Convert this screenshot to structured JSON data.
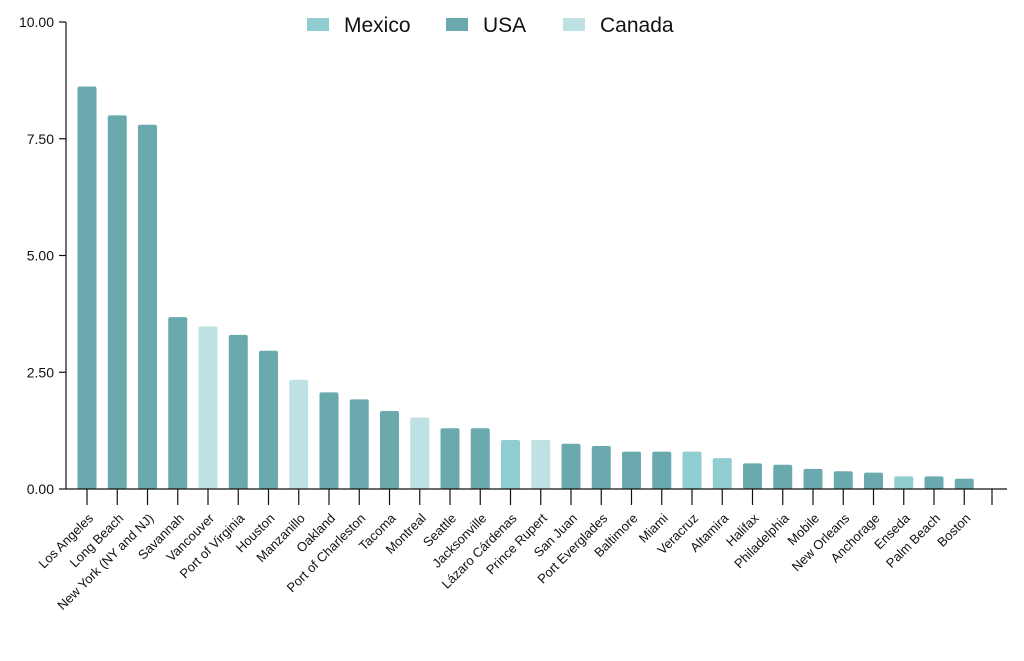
{
  "chart_data": {
    "type": "bar",
    "title": "",
    "xlabel": "",
    "ylabel": "",
    "ylim": [
      0,
      10
    ],
    "yticks": [
      "0.00",
      "2.50",
      "5.00",
      "7.50",
      "10.00"
    ],
    "grid": false,
    "legend_position": "top-center",
    "legend": [
      {
        "name": "Mexico",
        "color": "#90cdd0"
      },
      {
        "name": "USA",
        "color": "#6aaaae"
      },
      {
        "name": "Canada",
        "color": "#bee1e3"
      }
    ],
    "categories": [
      "Los Angeles",
      "Long Beach",
      "New York (NY and NJ)",
      "Savannah",
      "Vancouver",
      "Port of Virginia",
      "Houston",
      "Manzanillo",
      "Oakland",
      "Port of Charleston",
      "Tacoma",
      "Montreal",
      "Seattle",
      "Jacksonville",
      "Lázaro Cárdenas",
      "Prince Rupert",
      "San Juan",
      "Port Everglades",
      "Baltimore",
      "Miami",
      "Veracruz",
      "Altamira",
      "Halifax",
      "Philadelphia",
      "Mobile",
      "New Orleans",
      "Anchorage",
      "Enseda",
      "Palm Beach",
      "Boston"
    ],
    "values": [
      8.62,
      8.0,
      7.8,
      3.68,
      3.48,
      3.3,
      2.96,
      2.34,
      2.07,
      1.92,
      1.67,
      1.53,
      1.3,
      1.3,
      1.05,
      1.05,
      0.97,
      0.92,
      0.8,
      0.8,
      0.8,
      0.66,
      0.55,
      0.52,
      0.43,
      0.38,
      0.35,
      0.27,
      0.27,
      0.22
    ],
    "country": [
      "USA",
      "USA",
      "USA",
      "USA",
      "Canada",
      "USA",
      "USA",
      "Canada",
      "USA",
      "USA",
      "USA",
      "Canada",
      "USA",
      "USA",
      "Mexico",
      "Canada",
      "USA",
      "USA",
      "USA",
      "USA",
      "Mexico",
      "Mexico",
      "USA",
      "USA",
      "USA",
      "USA",
      "USA",
      "Mexico",
      "USA",
      "USA"
    ]
  }
}
